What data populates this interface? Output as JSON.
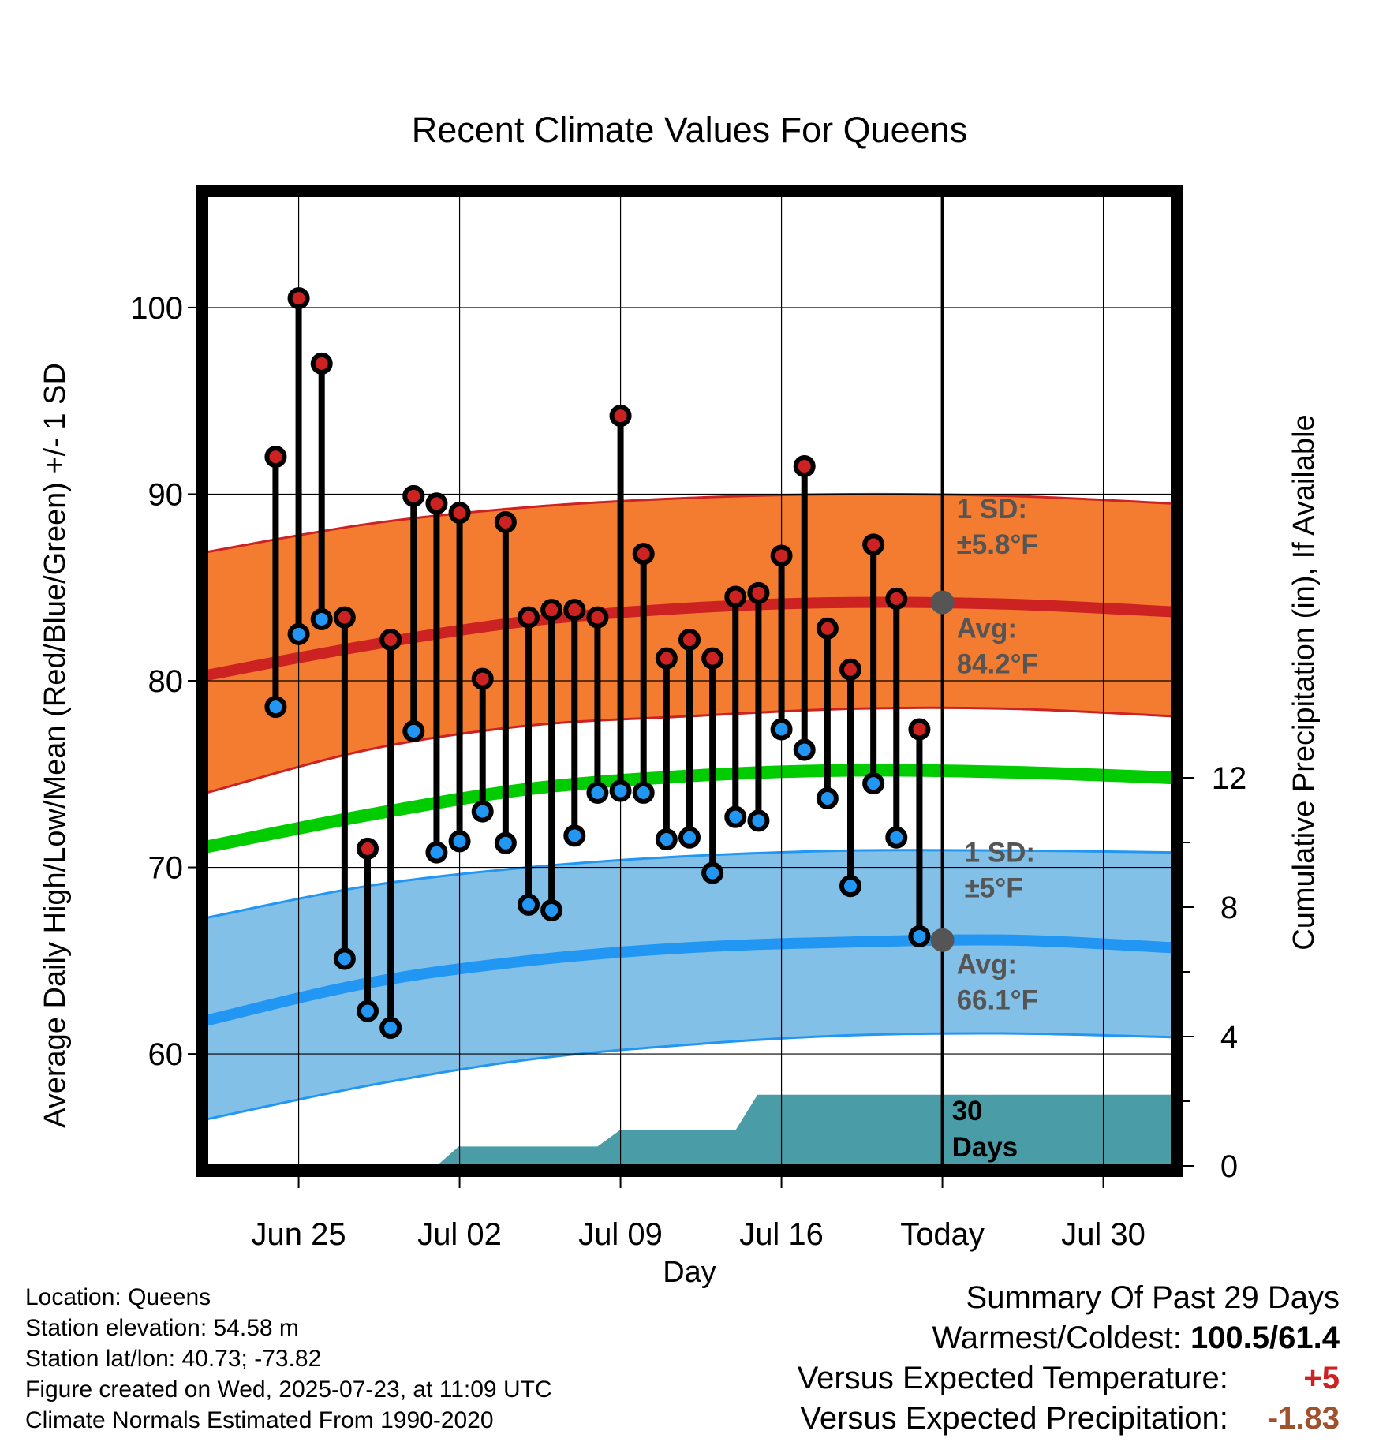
{
  "chart_data": {
    "type": "scatter",
    "title": "Recent Climate Values For Queens",
    "xlabel": "Day",
    "ylabel": "Average Daily High/Low/Mean (Red/Blue/Green) +/- 1 SD",
    "y2label": "Cumulative Precipitation (in), If Available",
    "x_ticks": [
      "Jun 25",
      "Jul 02",
      "Jul 09",
      "Jul 16",
      "Today",
      "Jul 30"
    ],
    "x_tick_dates": [
      "2025-06-25",
      "2025-07-02",
      "2025-07-09",
      "2025-07-16",
      "2025-07-23",
      "2025-07-30"
    ],
    "xlim": [
      "2025-06-21",
      "2025-08-02"
    ],
    "ylim": [
      54,
      106
    ],
    "y_ticks": [
      60,
      70,
      80,
      90,
      100
    ],
    "y2lim": [
      0,
      30
    ],
    "y2_ticks": [
      0,
      4,
      8,
      12
    ],
    "grid": true,
    "dates": [
      "2025-06-24",
      "2025-06-25",
      "2025-06-26",
      "2025-06-27",
      "2025-06-28",
      "2025-06-29",
      "2025-06-30",
      "2025-07-01",
      "2025-07-02",
      "2025-07-03",
      "2025-07-04",
      "2025-07-05",
      "2025-07-06",
      "2025-07-07",
      "2025-07-08",
      "2025-07-09",
      "2025-07-10",
      "2025-07-11",
      "2025-07-12",
      "2025-07-13",
      "2025-07-14",
      "2025-07-15",
      "2025-07-16",
      "2025-07-17",
      "2025-07-18",
      "2025-07-19",
      "2025-07-20",
      "2025-07-21",
      "2025-07-22"
    ],
    "series": [
      {
        "name": "High",
        "color": "#cc2222",
        "values": [
          92.0,
          100.5,
          97.0,
          83.4,
          71.0,
          82.2,
          89.9,
          89.5,
          89.0,
          80.1,
          88.5,
          83.4,
          83.8,
          83.8,
          83.4,
          94.2,
          86.8,
          81.2,
          82.2,
          81.2,
          84.5,
          84.7,
          86.7,
          91.5,
          82.8,
          80.6,
          87.3,
          84.4,
          77.4
        ]
      },
      {
        "name": "Low",
        "color": "#2196f3",
        "values": [
          78.6,
          82.5,
          83.3,
          65.1,
          62.3,
          61.4,
          77.3,
          70.8,
          71.4,
          73.0,
          71.3,
          68.0,
          67.7,
          71.7,
          74.0,
          74.1,
          74.0,
          71.5,
          71.6,
          69.7,
          72.7,
          72.5,
          77.4,
          76.3,
          73.7,
          69.0,
          74.5,
          71.6,
          66.3
        ]
      }
    ],
    "normals": {
      "dates": [
        "2025-06-21",
        "2025-06-28",
        "2025-07-05",
        "2025-07-12",
        "2025-07-19",
        "2025-07-26",
        "2025-08-02"
      ],
      "high_avg": [
        80.3,
        81.9,
        83.2,
        83.9,
        84.2,
        84.1,
        83.7
      ],
      "high_upper": [
        86.9,
        88.4,
        89.3,
        89.8,
        90.0,
        89.9,
        89.5
      ],
      "high_lower": [
        74.0,
        76.3,
        77.6,
        78.1,
        78.5,
        78.5,
        78.1
      ],
      "mean": [
        71.1,
        72.8,
        74.2,
        74.9,
        75.2,
        75.1,
        74.8
      ],
      "low_avg": [
        61.8,
        63.8,
        65.0,
        65.7,
        66.0,
        66.1,
        65.7
      ],
      "low_upper": [
        67.3,
        69.0,
        70.0,
        70.6,
        70.9,
        70.9,
        70.8
      ],
      "low_lower": [
        56.5,
        58.3,
        59.7,
        60.5,
        61.0,
        61.1,
        60.9
      ]
    },
    "precip": {
      "color": "#4a9ca6",
      "steps": [
        [
          "2025-06-21",
          0.0
        ],
        [
          "2025-07-01",
          0.6
        ],
        [
          "2025-07-08",
          1.1
        ],
        [
          "2025-07-14",
          2.2
        ],
        [
          "2025-08-02",
          2.2
        ]
      ]
    },
    "today": "2025-07-23",
    "today_high_avg": 84.2,
    "today_low_avg": 66.1,
    "colors": {
      "high_band": "#f47c30",
      "high_line": "#cc2222",
      "mean_line": "#00cc00",
      "low_band": "#82c0e8",
      "low_line": "#2196f3",
      "marker_today": "#555555"
    },
    "annotations": {
      "high_sd_title": "1 SD:",
      "high_sd_value": "±5.8°F",
      "high_avg_title": "Avg:",
      "high_avg_value": "84.2°F",
      "low_sd_title": "1 SD:",
      "low_sd_value": "±5°F",
      "low_avg_title": "Avg:",
      "low_avg_value": "66.1°F",
      "precip_line1": "30",
      "precip_line2": "Days"
    }
  },
  "footer": {
    "location": "Location: Queens",
    "elevation": "Station elevation: 54.58 m",
    "latlon": "Station lat/lon: 40.73; -73.82",
    "created": "Figure created on Wed, 2025-07-23, at 11:09 UTC",
    "normals": "Climate Normals Estimated From 1990-2020"
  },
  "summary": {
    "title": "Summary Of Past 29 Days",
    "warm_label": "Warmest/Coldest:",
    "warm_value": "100.5/61.4",
    "temp_label": "Versus Expected Temperature:",
    "temp_value": "+5",
    "precip_label": "Versus Expected Precipitation:",
    "precip_value": "-1.83"
  }
}
